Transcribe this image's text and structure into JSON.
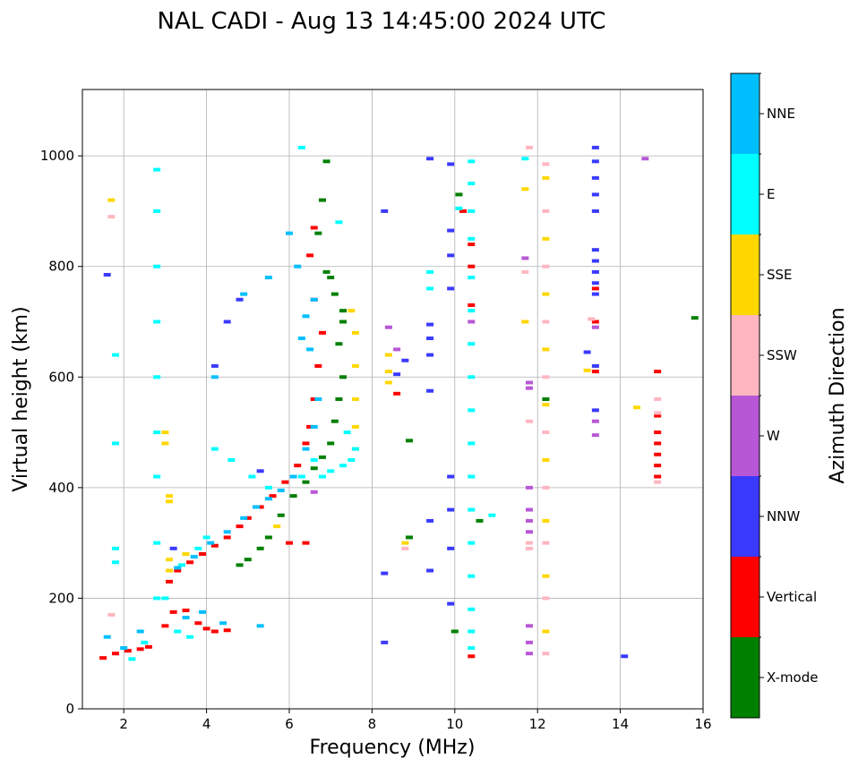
{
  "chart_data": {
    "type": "scatter",
    "title": "NAL CADI - Aug 13 14:45:00 2024 UTC",
    "xlabel": "Frequency (MHz)",
    "ylabel": "Virtual height (km)",
    "xlim": [
      1,
      16
    ],
    "ylim": [
      0,
      1120
    ],
    "xticks": [
      2,
      4,
      6,
      8,
      10,
      12,
      14,
      16
    ],
    "yticks": [
      0,
      200,
      400,
      600,
      800,
      1000
    ],
    "grid": true,
    "colorbar": {
      "label": "Azimuth Direction",
      "categories": [
        {
          "name": "X-mode",
          "color": "#008000"
        },
        {
          "name": "Vertical",
          "color": "#ff0000"
        },
        {
          "name": "NNW",
          "color": "#3a3aff"
        },
        {
          "name": "W",
          "color": "#b857d6"
        },
        {
          "name": "SSW",
          "color": "#ffb6c1"
        },
        {
          "name": "SSE",
          "color": "#ffd700"
        },
        {
          "name": "E",
          "color": "#00ffff"
        },
        {
          "name": "NNE",
          "color": "#00bfff"
        }
      ]
    },
    "traces": [
      {
        "direction": "Vertical",
        "points": [
          [
            1.5,
            92
          ],
          [
            1.8,
            100
          ],
          [
            2.1,
            105
          ],
          [
            2.4,
            108
          ],
          [
            2.6,
            112
          ],
          [
            3.0,
            150
          ],
          [
            3.2,
            175
          ],
          [
            3.5,
            178
          ],
          [
            3.8,
            155
          ],
          [
            4.0,
            145
          ],
          [
            4.2,
            140
          ],
          [
            4.5,
            142
          ],
          [
            3.1,
            230
          ],
          [
            3.3,
            250
          ],
          [
            3.6,
            265
          ],
          [
            3.9,
            280
          ],
          [
            4.2,
            295
          ],
          [
            4.5,
            310
          ],
          [
            4.8,
            330
          ],
          [
            5.0,
            345
          ],
          [
            5.3,
            365
          ],
          [
            5.6,
            385
          ],
          [
            5.9,
            410
          ],
          [
            6.2,
            440
          ],
          [
            6.4,
            480
          ],
          [
            6.5,
            510
          ],
          [
            6.6,
            560
          ],
          [
            6.7,
            620
          ],
          [
            6.8,
            680
          ],
          [
            6.6,
            740
          ],
          [
            6.5,
            820
          ],
          [
            6.6,
            870
          ],
          [
            14.9,
            420
          ],
          [
            14.9,
            440
          ],
          [
            14.9,
            460
          ],
          [
            14.9,
            480
          ],
          [
            14.9,
            500
          ],
          [
            14.9,
            530
          ],
          [
            14.9,
            610
          ],
          [
            13.4,
            610
          ],
          [
            13.4,
            760
          ],
          [
            13.4,
            700
          ],
          [
            10.4,
            95
          ],
          [
            10.4,
            730
          ],
          [
            10.4,
            840
          ],
          [
            10.2,
            900
          ],
          [
            10.4,
            800
          ],
          [
            8.6,
            570
          ],
          [
            6.4,
            300
          ],
          [
            6.0,
            300
          ]
        ]
      },
      {
        "direction": "X-mode",
        "points": [
          [
            4.8,
            260
          ],
          [
            5.0,
            270
          ],
          [
            5.3,
            290
          ],
          [
            5.5,
            310
          ],
          [
            5.8,
            350
          ],
          [
            6.1,
            385
          ],
          [
            6.4,
            410
          ],
          [
            6.6,
            435
          ],
          [
            6.8,
            455
          ],
          [
            7.0,
            480
          ],
          [
            7.1,
            520
          ],
          [
            7.2,
            560
          ],
          [
            7.3,
            600
          ],
          [
            7.2,
            660
          ],
          [
            7.3,
            700
          ],
          [
            7.1,
            750
          ],
          [
            6.9,
            790
          ],
          [
            6.7,
            860
          ],
          [
            6.8,
            920
          ],
          [
            6.9,
            990
          ],
          [
            10.1,
            930
          ],
          [
            10.6,
            340
          ],
          [
            10.0,
            140
          ],
          [
            15.8,
            707
          ],
          [
            12.2,
            560
          ],
          [
            8.9,
            485
          ],
          [
            8.9,
            310
          ],
          [
            7.3,
            720
          ],
          [
            7.0,
            780
          ]
        ]
      },
      {
        "direction": "NNW",
        "points": [
          [
            13.4,
            1015
          ],
          [
            13.4,
            990
          ],
          [
            13.4,
            960
          ],
          [
            13.4,
            930
          ],
          [
            13.4,
            900
          ],
          [
            13.4,
            830
          ],
          [
            13.4,
            810
          ],
          [
            13.4,
            790
          ],
          [
            13.4,
            770
          ],
          [
            13.4,
            750
          ],
          [
            13.4,
            620
          ],
          [
            13.4,
            540
          ],
          [
            13.2,
            645
          ],
          [
            9.4,
            995
          ],
          [
            9.9,
            985
          ],
          [
            9.9,
            865
          ],
          [
            9.9,
            820
          ],
          [
            9.9,
            760
          ],
          [
            9.9,
            420
          ],
          [
            9.9,
            360
          ],
          [
            9.9,
            290
          ],
          [
            9.9,
            190
          ],
          [
            9.4,
            695
          ],
          [
            9.4,
            670
          ],
          [
            9.4,
            640
          ],
          [
            9.4,
            575
          ],
          [
            9.4,
            340
          ],
          [
            9.4,
            250
          ],
          [
            8.3,
            900
          ],
          [
            8.3,
            245
          ],
          [
            8.3,
            120
          ],
          [
            8.6,
            605
          ],
          [
            8.8,
            630
          ],
          [
            14.1,
            95
          ],
          [
            4.2,
            620
          ],
          [
            4.5,
            700
          ],
          [
            4.8,
            740
          ],
          [
            1.6,
            785
          ],
          [
            3.2,
            290
          ],
          [
            5.3,
            430
          ]
        ]
      },
      {
        "direction": "W",
        "points": [
          [
            11.8,
            580
          ],
          [
            11.8,
            590
          ],
          [
            11.8,
            400
          ],
          [
            11.8,
            360
          ],
          [
            11.8,
            340
          ],
          [
            11.8,
            320
          ],
          [
            11.8,
            150
          ],
          [
            11.8,
            120
          ],
          [
            11.8,
            100
          ],
          [
            13.4,
            495
          ],
          [
            13.4,
            520
          ],
          [
            13.4,
            690
          ],
          [
            14.6,
            995
          ],
          [
            8.4,
            690
          ],
          [
            8.6,
            650
          ],
          [
            11.7,
            815
          ],
          [
            6.6,
            392
          ],
          [
            10.4,
            700
          ]
        ]
      },
      {
        "direction": "SSW",
        "points": [
          [
            11.8,
            300
          ],
          [
            11.8,
            290
          ],
          [
            11.8,
            520
          ],
          [
            11.8,
            1015
          ],
          [
            12.2,
            985
          ],
          [
            12.2,
            900
          ],
          [
            12.2,
            800
          ],
          [
            12.2,
            700
          ],
          [
            12.2,
            600
          ],
          [
            12.2,
            500
          ],
          [
            12.2,
            400
          ],
          [
            12.2,
            300
          ],
          [
            12.2,
            200
          ],
          [
            12.2,
            100
          ],
          [
            14.9,
            410
          ],
          [
            14.9,
            560
          ],
          [
            14.9,
            535
          ],
          [
            13.3,
            705
          ],
          [
            1.7,
            170
          ],
          [
            1.7,
            890
          ],
          [
            8.8,
            290
          ],
          [
            11.7,
            790
          ]
        ]
      },
      {
        "direction": "SSE",
        "points": [
          [
            3.1,
            375
          ],
          [
            3.1,
            385
          ],
          [
            3.1,
            250
          ],
          [
            3.1,
            270
          ],
          [
            3.0,
            480
          ],
          [
            3.0,
            500
          ],
          [
            1.7,
            920
          ],
          [
            8.4,
            590
          ],
          [
            8.4,
            610
          ],
          [
            8.4,
            640
          ],
          [
            8.8,
            300
          ],
          [
            11.7,
            940
          ],
          [
            11.7,
            700
          ],
          [
            14.4,
            545
          ],
          [
            12.2,
            960
          ],
          [
            12.2,
            850
          ],
          [
            12.2,
            750
          ],
          [
            12.2,
            650
          ],
          [
            12.2,
            550
          ],
          [
            12.2,
            450
          ],
          [
            12.2,
            340
          ],
          [
            12.2,
            240
          ],
          [
            12.2,
            140
          ],
          [
            7.6,
            680
          ],
          [
            7.6,
            620
          ],
          [
            7.6,
            560
          ],
          [
            7.6,
            510
          ],
          [
            7.6,
            470
          ],
          [
            7.5,
            720
          ],
          [
            13.2,
            612
          ],
          [
            3.5,
            280
          ],
          [
            5.7,
            330
          ]
        ]
      },
      {
        "direction": "E",
        "points": [
          [
            2.8,
            975
          ],
          [
            2.8,
            900
          ],
          [
            2.8,
            800
          ],
          [
            2.8,
            700
          ],
          [
            2.8,
            600
          ],
          [
            2.8,
            500
          ],
          [
            2.8,
            420
          ],
          [
            2.8,
            300
          ],
          [
            2.8,
            200
          ],
          [
            1.8,
            640
          ],
          [
            1.8,
            480
          ],
          [
            1.8,
            290
          ],
          [
            1.8,
            265
          ],
          [
            2.2,
            90
          ],
          [
            2.5,
            120
          ],
          [
            3.0,
            200
          ],
          [
            3.3,
            140
          ],
          [
            3.6,
            130
          ],
          [
            10.4,
            990
          ],
          [
            10.4,
            950
          ],
          [
            10.4,
            900
          ],
          [
            10.4,
            850
          ],
          [
            10.4,
            780
          ],
          [
            10.4,
            720
          ],
          [
            10.4,
            660
          ],
          [
            10.4,
            600
          ],
          [
            10.4,
            540
          ],
          [
            10.4,
            480
          ],
          [
            10.4,
            420
          ],
          [
            10.4,
            360
          ],
          [
            10.4,
            300
          ],
          [
            10.4,
            240
          ],
          [
            10.4,
            180
          ],
          [
            10.4,
            140
          ],
          [
            10.4,
            110
          ],
          [
            10.1,
            905
          ],
          [
            9.4,
            790
          ],
          [
            9.4,
            760
          ],
          [
            10.9,
            350
          ],
          [
            11.7,
            995
          ],
          [
            6.3,
            1015
          ],
          [
            7.2,
            880
          ],
          [
            7.6,
            470
          ],
          [
            7.4,
            500
          ],
          [
            7.5,
            450
          ],
          [
            7.3,
            440
          ],
          [
            7.0,
            430
          ],
          [
            6.8,
            420
          ],
          [
            6.6,
            450
          ],
          [
            6.3,
            420
          ],
          [
            4.2,
            470
          ],
          [
            4.6,
            450
          ],
          [
            5.1,
            420
          ],
          [
            5.5,
            400
          ],
          [
            3.4,
            260
          ],
          [
            3.8,
            290
          ],
          [
            4.0,
            310
          ]
        ]
      },
      {
        "direction": "NNE",
        "points": [
          [
            1.6,
            130
          ],
          [
            2.0,
            110
          ],
          [
            2.4,
            140
          ],
          [
            3.5,
            165
          ],
          [
            3.9,
            175
          ],
          [
            4.4,
            155
          ],
          [
            5.3,
            150
          ],
          [
            3.3,
            255
          ],
          [
            3.7,
            275
          ],
          [
            4.1,
            300
          ],
          [
            4.5,
            320
          ],
          [
            4.9,
            345
          ],
          [
            5.2,
            365
          ],
          [
            5.5,
            380
          ],
          [
            5.8,
            395
          ],
          [
            6.1,
            420
          ],
          [
            6.4,
            470
          ],
          [
            6.6,
            510
          ],
          [
            6.7,
            560
          ],
          [
            6.5,
            650
          ],
          [
            6.3,
            670
          ],
          [
            6.4,
            710
          ],
          [
            6.6,
            740
          ],
          [
            6.2,
            800
          ],
          [
            6.0,
            860
          ],
          [
            4.2,
            600
          ],
          [
            4.9,
            750
          ],
          [
            5.5,
            780
          ]
        ]
      }
    ]
  }
}
